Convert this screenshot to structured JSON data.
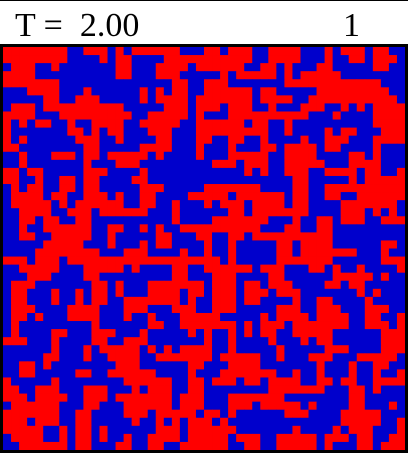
{
  "header": {
    "temperature_label": "T =  2.00",
    "step": "1"
  },
  "lattice": {
    "rows": 50,
    "cols": 50,
    "spin_up_color": "#ff0000",
    "spin_down_color": "#0000cc",
    "state": "random-spin-configuration"
  }
}
